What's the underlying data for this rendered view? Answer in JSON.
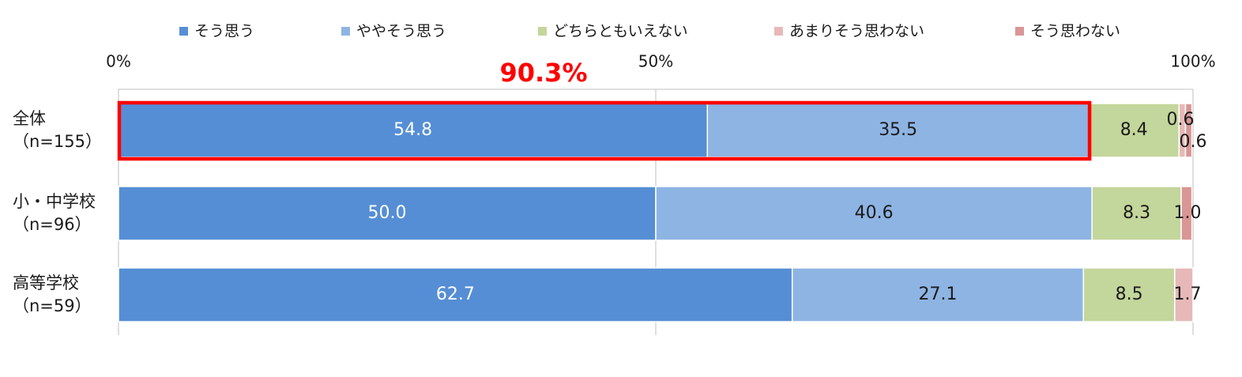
{
  "chart_data": {
    "type": "bar",
    "orientation": "horizontal",
    "stacked": true,
    "xlim": [
      0,
      100
    ],
    "x_tick_labels": [
      "0%",
      "50%",
      "100%"
    ],
    "grid": true,
    "legend_position": "top",
    "categories": [
      {
        "line1": "全体",
        "line2": "（n=155）"
      },
      {
        "line1": "小・中学校",
        "line2": "（n=96）"
      },
      {
        "line1": "高等学校",
        "line2": "（n=59）"
      }
    ],
    "series": [
      {
        "name": "そう思う",
        "color": "#558ED5",
        "text_color": "#ffffff",
        "values": [
          54.8,
          50.0,
          62.7
        ],
        "labels": [
          "54.8",
          "50.0",
          "62.7"
        ]
      },
      {
        "name": "ややそう思う",
        "color": "#8EB4E3",
        "text_color": "#1a1a1a",
        "values": [
          35.5,
          40.6,
          27.1
        ],
        "labels": [
          "35.5",
          "40.6",
          "27.1"
        ]
      },
      {
        "name": "どちらともいえない",
        "color": "#C3D69B",
        "text_color": "#1a1a1a",
        "values": [
          8.4,
          8.3,
          8.5
        ],
        "labels": [
          "8.4",
          "8.3",
          "8.5"
        ]
      },
      {
        "name": "あまりそう思わない",
        "color": "#E6B9B8",
        "text_color": "#1a1a1a",
        "values": [
          0.6,
          0.0,
          1.7
        ],
        "labels": [
          "0.6",
          "",
          "1.7"
        ]
      },
      {
        "name": "そう思わない",
        "color": "#D99694",
        "text_color": "#1a1a1a",
        "values": [
          0.6,
          1.0,
          0.0
        ],
        "labels": [
          "0.6",
          "1.0",
          ""
        ]
      }
    ],
    "annotation": {
      "text": "90.3%",
      "color": "#FF0000",
      "row": 0,
      "from": 0,
      "to": 90.3
    }
  }
}
